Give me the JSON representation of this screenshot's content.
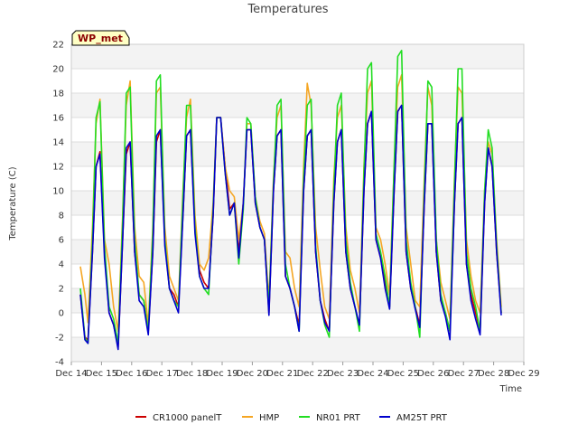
{
  "chart_data": {
    "type": "line",
    "title": "Temperatures",
    "xlabel": "Time",
    "ylabel": "Temperature (C)",
    "badge": "WP_met",
    "ylim": [
      -4,
      22
    ],
    "yticks": [
      -4,
      -2,
      0,
      2,
      4,
      6,
      8,
      10,
      12,
      14,
      16,
      18,
      20,
      22
    ],
    "xlim": [
      14,
      29
    ],
    "xticks": [
      14,
      15,
      16,
      17,
      18,
      19,
      20,
      21,
      22,
      23,
      24,
      25,
      26,
      27,
      28,
      29
    ],
    "xtick_labels": [
      "Dec 14",
      "Dec 15",
      "Dec 16",
      "Dec 17",
      "Dec 18",
      "Dec 19",
      "Dec 20",
      "Dec 21",
      "Dec 22",
      "Dec 23",
      "Dec 24",
      "Dec 25",
      "Dec 26",
      "Dec 27",
      "Dec 28",
      "Dec 29"
    ],
    "grid": true,
    "legend_position": "bottom",
    "series": [
      {
        "name": "CR1000 panelT",
        "color": "#cc0000",
        "x": [
          14.3,
          14.45,
          14.55,
          14.7,
          14.82,
          14.95,
          15.1,
          15.25,
          15.4,
          15.55,
          15.7,
          15.82,
          15.95,
          16.1,
          16.25,
          16.4,
          16.55,
          16.7,
          16.82,
          16.95,
          17.1,
          17.25,
          17.4,
          17.55,
          17.7,
          17.82,
          17.95,
          18.1,
          18.25,
          18.4,
          18.55,
          18.7,
          18.82,
          18.95,
          19.1,
          19.25,
          19.4,
          19.55,
          19.7,
          19.82,
          19.95,
          20.1,
          20.25,
          20.4,
          20.55,
          20.7,
          20.82,
          20.95,
          21.1,
          21.25,
          21.4,
          21.55,
          21.7,
          21.82,
          21.95,
          22.1,
          22.25,
          22.4,
          22.55,
          22.7,
          22.82,
          22.95,
          23.1,
          23.25,
          23.4,
          23.55,
          23.7,
          23.82,
          23.95,
          24.1,
          24.25,
          24.4,
          24.55,
          24.7,
          24.82,
          24.95,
          25.1,
          25.25,
          25.4,
          25.55,
          25.7,
          25.82,
          25.95,
          26.1,
          26.25,
          26.4,
          26.55,
          26.7,
          26.82,
          26.95,
          27.1,
          27.25,
          27.4,
          27.55,
          27.7,
          27.82,
          27.95,
          28.1,
          28.25
        ],
        "y": [
          1.5,
          -2.0,
          -2.2,
          5.0,
          12.0,
          13.2,
          5.0,
          0.0,
          -1.0,
          -2.8,
          6.0,
          13.0,
          14.0,
          5.0,
          1.5,
          1.0,
          -1.5,
          5.0,
          14.0,
          15.0,
          6.0,
          2.0,
          1.5,
          0.5,
          8.0,
          14.5,
          15.0,
          7.0,
          3.5,
          2.5,
          2.0,
          8.0,
          16.0,
          16.0,
          12.0,
          8.5,
          9.0,
          5.0,
          9.0,
          15.0,
          15.0,
          9.0,
          7.0,
          6.0,
          0.0,
          10.0,
          14.5,
          15.0,
          3.0,
          2.0,
          0.5,
          -1.0,
          10.0,
          14.5,
          15.0,
          5.0,
          1.0,
          -0.5,
          -1.5,
          9.0,
          14.0,
          15.0,
          5.0,
          2.0,
          0.5,
          -1.0,
          10.0,
          15.5,
          16.5,
          6.0,
          4.5,
          2.5,
          0.5,
          10.0,
          16.5,
          17.0,
          5.0,
          2.0,
          0.5,
          -1.0,
          9.0,
          15.5,
          15.5,
          5.0,
          1.0,
          0.0,
          -1.5,
          9.0,
          15.5,
          16.0,
          4.0,
          1.5,
          0.0,
          -1.5,
          9.0,
          13.5,
          12.0,
          5.0,
          0.0
        ]
      },
      {
        "name": "HMP",
        "color": "#f5a623",
        "x": [
          14.3,
          14.45,
          14.55,
          14.7,
          14.82,
          14.95,
          15.1,
          15.25,
          15.4,
          15.55,
          15.7,
          15.82,
          15.95,
          16.1,
          16.25,
          16.4,
          16.55,
          16.7,
          16.82,
          16.95,
          17.1,
          17.25,
          17.4,
          17.55,
          17.7,
          17.82,
          17.95,
          18.1,
          18.25,
          18.4,
          18.55,
          18.7,
          18.82,
          18.95,
          19.1,
          19.25,
          19.4,
          19.55,
          19.7,
          19.82,
          19.95,
          20.1,
          20.25,
          20.4,
          20.55,
          20.7,
          20.82,
          20.95,
          21.1,
          21.25,
          21.4,
          21.55,
          21.7,
          21.82,
          21.95,
          22.1,
          22.25,
          22.4,
          22.55,
          22.7,
          22.82,
          22.95,
          23.1,
          23.25,
          23.4,
          23.55,
          23.7,
          23.82,
          23.95,
          24.1,
          24.25,
          24.4,
          24.55,
          24.7,
          24.82,
          24.95,
          25.1,
          25.25,
          25.4,
          25.55,
          25.7,
          25.82,
          25.95,
          26.1,
          26.25,
          26.4,
          26.55,
          26.7,
          26.82,
          26.95,
          27.1,
          27.25,
          27.4,
          27.55,
          27.7,
          27.82,
          27.95,
          28.1,
          28.25
        ],
        "y": [
          3.8,
          1.5,
          -0.8,
          7.0,
          15.5,
          17.5,
          6.0,
          4.0,
          0.5,
          -1.5,
          8.0,
          17.0,
          19.0,
          7.0,
          3.0,
          2.5,
          -1.0,
          7.0,
          18.0,
          18.5,
          7.0,
          3.0,
          2.0,
          1.0,
          10.0,
          16.0,
          17.5,
          8.0,
          4.0,
          3.5,
          4.5,
          9.0,
          16.0,
          16.0,
          12.0,
          10.0,
          9.5,
          6.0,
          9.0,
          15.5,
          15.5,
          9.5,
          7.5,
          6.5,
          1.0,
          11.0,
          16.0,
          17.0,
          5.0,
          4.5,
          2.0,
          0.5,
          12.0,
          18.8,
          17.0,
          7.0,
          3.5,
          0.5,
          -0.5,
          11.0,
          16.0,
          17.0,
          7.0,
          3.5,
          2.0,
          0.0,
          12.0,
          18.0,
          19.0,
          7.0,
          6.0,
          4.0,
          1.5,
          12.0,
          18.5,
          19.5,
          7.0,
          4.0,
          1.0,
          0.5,
          11.0,
          18.5,
          17.0,
          6.0,
          2.5,
          1.0,
          -0.5,
          11.0,
          18.5,
          18.0,
          6.0,
          3.0,
          1.0,
          0.0,
          10.0,
          14.0,
          13.0,
          6.0,
          0.5
        ]
      },
      {
        "name": "NR01 PRT",
        "color": "#22dd22",
        "x": [
          14.3,
          14.45,
          14.55,
          14.7,
          14.82,
          14.95,
          15.1,
          15.25,
          15.4,
          15.55,
          15.7,
          15.82,
          15.95,
          16.1,
          16.25,
          16.4,
          16.55,
          16.7,
          16.82,
          16.95,
          17.1,
          17.25,
          17.4,
          17.55,
          17.7,
          17.82,
          17.95,
          18.1,
          18.25,
          18.4,
          18.55,
          18.7,
          18.82,
          18.95,
          19.1,
          19.25,
          19.4,
          19.55,
          19.7,
          19.82,
          19.95,
          20.1,
          20.25,
          20.4,
          20.55,
          20.7,
          20.82,
          20.95,
          21.1,
          21.25,
          21.4,
          21.55,
          21.7,
          21.82,
          21.95,
          22.1,
          22.25,
          22.4,
          22.55,
          22.7,
          22.82,
          22.95,
          23.1,
          23.25,
          23.4,
          23.55,
          23.7,
          23.82,
          23.95,
          24.1,
          24.25,
          24.4,
          24.55,
          24.7,
          24.82,
          24.95,
          25.1,
          25.25,
          25.4,
          25.55,
          25.7,
          25.82,
          25.95,
          26.1,
          26.25,
          26.4,
          26.55,
          26.7,
          26.82,
          26.95,
          27.1,
          27.25,
          27.4,
          27.55,
          27.7,
          27.82,
          27.95,
          28.1,
          28.25
        ],
        "y": [
          2.0,
          -2.0,
          -2.5,
          6.0,
          16.0,
          17.3,
          5.5,
          0.5,
          -0.5,
          -2.5,
          7.5,
          18.0,
          18.5,
          6.0,
          1.5,
          1.0,
          -1.5,
          6.5,
          19.0,
          19.5,
          6.0,
          2.0,
          1.0,
          0.5,
          9.5,
          17.0,
          17.0,
          7.0,
          3.0,
          2.0,
          1.5,
          8.5,
          16.0,
          16.0,
          11.5,
          8.0,
          9.0,
          4.0,
          8.5,
          16.0,
          15.5,
          9.5,
          7.0,
          6.0,
          0.5,
          10.5,
          17.0,
          17.5,
          4.0,
          2.0,
          0.5,
          -1.5,
          11.0,
          17.0,
          17.5,
          5.5,
          1.0,
          -1.0,
          -2.0,
          10.0,
          17.0,
          18.0,
          6.0,
          2.5,
          0.5,
          -1.5,
          11.5,
          20.0,
          20.5,
          6.5,
          5.0,
          3.0,
          0.5,
          12.0,
          21.0,
          21.5,
          6.0,
          2.5,
          0.5,
          -2.0,
          10.0,
          19.0,
          18.5,
          6.0,
          1.5,
          0.0,
          -1.5,
          10.5,
          20.0,
          20.0,
          5.0,
          2.0,
          0.5,
          -1.5,
          10.0,
          15.0,
          13.5,
          5.5,
          0.0
        ]
      },
      {
        "name": "AM25T PRT",
        "color": "#0000cc",
        "x": [
          14.3,
          14.45,
          14.55,
          14.7,
          14.82,
          14.95,
          15.1,
          15.25,
          15.4,
          15.55,
          15.7,
          15.82,
          15.95,
          16.1,
          16.25,
          16.4,
          16.55,
          16.7,
          16.82,
          16.95,
          17.1,
          17.25,
          17.4,
          17.55,
          17.7,
          17.82,
          17.95,
          18.1,
          18.25,
          18.4,
          18.55,
          18.7,
          18.82,
          18.95,
          19.1,
          19.25,
          19.4,
          19.55,
          19.7,
          19.82,
          19.95,
          20.1,
          20.25,
          20.4,
          20.55,
          20.7,
          20.82,
          20.95,
          21.1,
          21.25,
          21.4,
          21.55,
          21.7,
          21.82,
          21.95,
          22.1,
          22.25,
          22.4,
          22.55,
          22.7,
          22.82,
          22.95,
          23.1,
          23.25,
          23.4,
          23.55,
          23.7,
          23.82,
          23.95,
          24.1,
          24.25,
          24.4,
          24.55,
          24.7,
          24.82,
          24.95,
          25.1,
          25.25,
          25.4,
          25.55,
          25.7,
          25.82,
          25.95,
          26.1,
          26.25,
          26.4,
          26.55,
          26.7,
          26.82,
          26.95,
          27.1,
          27.25,
          27.4,
          27.55,
          27.7,
          27.82,
          27.95,
          28.1,
          28.25
        ],
        "y": [
          1.5,
          -2.2,
          -2.5,
          5.0,
          12.0,
          13.0,
          4.5,
          0.0,
          -1.0,
          -3.0,
          6.0,
          13.5,
          14.0,
          5.0,
          1.0,
          0.5,
          -1.8,
          5.0,
          14.5,
          15.0,
          5.5,
          2.0,
          1.0,
          0.0,
          8.0,
          14.5,
          15.0,
          6.5,
          3.0,
          2.0,
          2.0,
          8.0,
          16.0,
          16.0,
          11.5,
          8.0,
          9.0,
          4.5,
          9.0,
          15.0,
          15.0,
          9.0,
          7.0,
          6.0,
          -0.2,
          10.0,
          14.5,
          15.0,
          3.0,
          2.0,
          0.5,
          -1.5,
          10.0,
          14.5,
          15.0,
          5.0,
          1.0,
          -0.8,
          -1.5,
          9.0,
          14.0,
          15.0,
          5.0,
          2.0,
          0.5,
          -1.0,
          10.0,
          15.5,
          16.5,
          6.0,
          4.5,
          2.0,
          0.3,
          10.0,
          16.5,
          17.0,
          5.0,
          2.0,
          0.3,
          -1.2,
          9.0,
          15.5,
          15.5,
          5.0,
          1.0,
          -0.3,
          -2.2,
          9.0,
          15.5,
          16.0,
          4.0,
          1.0,
          -0.5,
          -1.8,
          9.0,
          13.5,
          12.0,
          5.0,
          -0.2
        ]
      }
    ]
  }
}
